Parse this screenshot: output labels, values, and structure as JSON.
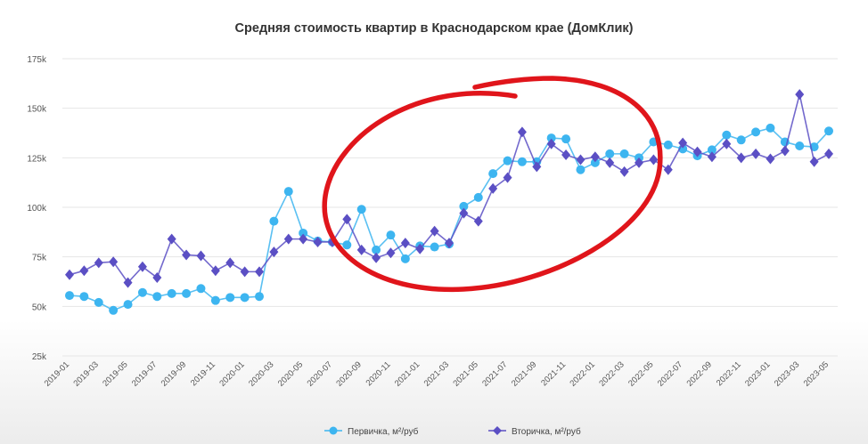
{
  "chart_data": {
    "type": "line",
    "title": "Средняя стоимость квартир в Краснодарском крае (ДомКлик)",
    "xlabel": "",
    "ylabel": "",
    "ylim": [
      25000,
      175000
    ],
    "yticks": [
      25000,
      50000,
      75000,
      100000,
      125000,
      150000,
      175000
    ],
    "ytick_labels": [
      "25k",
      "50k",
      "75k",
      "100k",
      "125k",
      "150k",
      "175k"
    ],
    "grid": true,
    "legend_position": "bottom",
    "x": [
      "2019-01",
      "2019-02",
      "2019-03",
      "2019-04",
      "2019-05",
      "2019-06",
      "2019-07",
      "2019-08",
      "2019-09",
      "2019-10",
      "2019-11",
      "2019-12",
      "2020-01",
      "2020-02",
      "2020-03",
      "2020-04",
      "2020-05",
      "2020-06",
      "2020-07",
      "2020-08",
      "2020-09",
      "2020-10",
      "2020-11",
      "2020-12",
      "2021-01",
      "2021-02",
      "2021-03",
      "2021-04",
      "2021-05",
      "2021-06",
      "2021-07",
      "2021-08",
      "2021-09",
      "2021-10",
      "2021-11",
      "2021-12",
      "2022-01",
      "2022-02",
      "2022-03",
      "2022-04",
      "2022-05",
      "2022-06",
      "2022-07",
      "2022-08",
      "2022-09",
      "2022-10",
      "2022-11",
      "2022-12",
      "2023-01",
      "2023-02",
      "2023-03",
      "2023-04",
      "2023-05"
    ],
    "series": [
      {
        "name": "Первичка, м²/руб",
        "color": "#3db5f0",
        "marker": "circle",
        "values": [
          55500,
          55000,
          52000,
          48000,
          51000,
          57000,
          55000,
          56500,
          56500,
          59000,
          53000,
          54500,
          54500,
          55000,
          93000,
          108000,
          87000,
          83000,
          82500,
          81000,
          99000,
          78500,
          86000,
          74000,
          80500,
          80000,
          81500,
          100500,
          105000,
          117000,
          123500,
          123000,
          123000,
          135000,
          134500,
          119000,
          122500,
          127000,
          127000,
          125000,
          133000,
          131500,
          129500,
          126000,
          129000,
          136500,
          134000,
          138000,
          140000,
          133000,
          131000,
          130500,
          138500
        ]
      },
      {
        "name": "Вторичка, м²/руб",
        "color": "#5b4fc4",
        "marker": "diamond",
        "values": [
          66000,
          68000,
          72000,
          72500,
          62000,
          70000,
          64500,
          84000,
          76000,
          75500,
          68000,
          72000,
          67500,
          67500,
          77500,
          84000,
          84000,
          82500,
          82500,
          94000,
          78500,
          74500,
          77000,
          82000,
          79000,
          88000,
          82000,
          97000,
          93000,
          109500,
          115000,
          138000,
          120500,
          132000,
          126500,
          124000,
          125500,
          122500,
          118000,
          122500,
          124000,
          119000,
          132500,
          128000,
          125500,
          132000,
          125000,
          127000,
          124500,
          128500,
          157000,
          123000,
          127000
        ]
      }
    ],
    "annotation_color": "#e0151b"
  }
}
